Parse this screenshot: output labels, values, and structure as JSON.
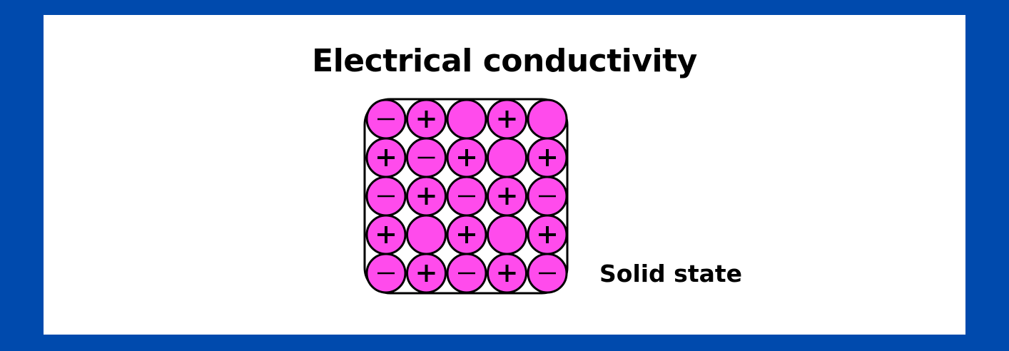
{
  "title": "Electrical conductivity",
  "state_label": "Solid state",
  "colors": {
    "frame": "#004aad",
    "background": "#ffffff",
    "particle_fill": "#ff4bec",
    "outline": "#000000"
  },
  "lattice": {
    "rows": [
      [
        "-",
        "+",
        "",
        "+",
        ""
      ],
      [
        "+",
        "-",
        "+",
        "",
        "+"
      ],
      [
        "-",
        "+",
        "-",
        "+",
        "-"
      ],
      [
        "+",
        "",
        "+",
        "",
        "+"
      ],
      [
        "-",
        "+",
        "-",
        "+",
        "-"
      ]
    ]
  }
}
